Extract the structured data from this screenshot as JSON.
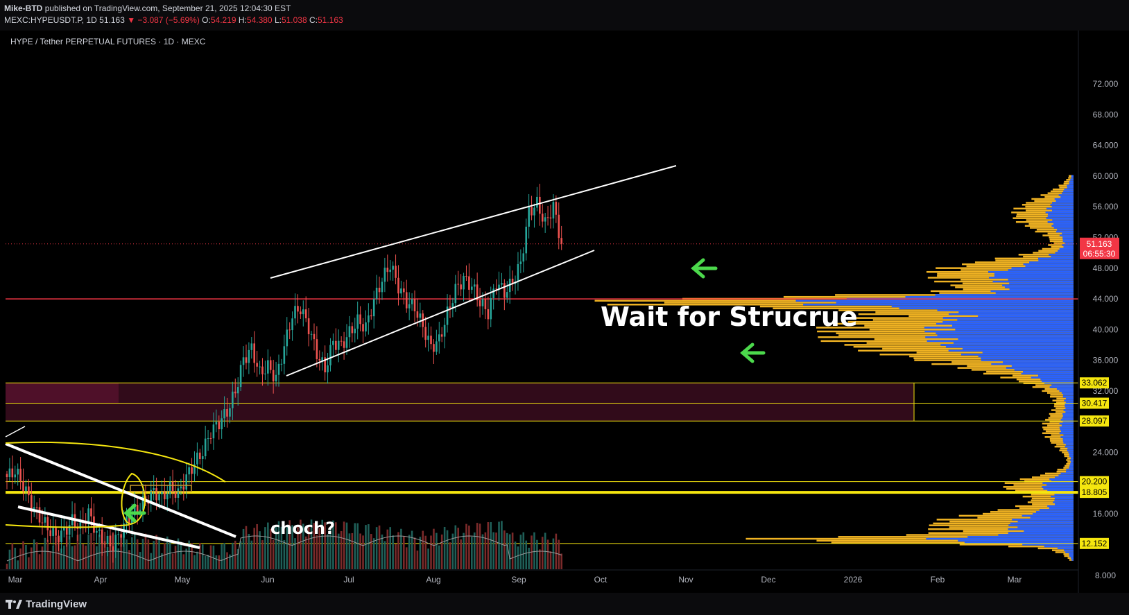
{
  "header": {
    "author": "Mike-BTD",
    "published_text": "published on TradingView.com, September 21, 2025 12:04:30 EST",
    "symbol": "MEXC:HYPEUSDT.P, 1D",
    "last": "51.163",
    "change": "▼ −3.087 (−5.69%)",
    "o_label": "O:",
    "o": "54.219",
    "h_label": "H:",
    "h": "54.380",
    "l_label": "L:",
    "l": "51.038",
    "c_label": "C:",
    "c": "51.163"
  },
  "chart": {
    "title": "HYPE / Tether PERPETUAL FUTURES · 1D · MEXC",
    "annotation_main": "Wait for Strucrue",
    "annotation_choch": "choch?",
    "price_ticks": [
      "72.000",
      "68.000",
      "64.000",
      "60.000",
      "56.000",
      "52.000",
      "48.000",
      "44.000",
      "40.000",
      "36.000",
      "32.000",
      "24.000",
      "16.000",
      "8.000"
    ],
    "price_tick_values": [
      72,
      68,
      64,
      60,
      56,
      52,
      48,
      44,
      40,
      36,
      32,
      24,
      16,
      8
    ],
    "current_price_label": "51.163",
    "countdown_label": "06:55:30",
    "level_labels": [
      "33.062",
      "30.417",
      "28.097",
      "20.200",
      "18.805",
      "12.152"
    ],
    "level_values": [
      33.062,
      30.417,
      28.097,
      20.2,
      18.805,
      12.152
    ],
    "time_labels": [
      "Mar",
      "Apr",
      "May",
      "Jun",
      "Jul",
      "Aug",
      "Sep",
      "Oct",
      "Nov",
      "Dec",
      "2026",
      "Feb",
      "Mar"
    ],
    "colors": {
      "up": "#26a69a",
      "down": "#ef5350",
      "level": "#f5e60f",
      "red_level": "#f23645",
      "arrow": "#4cd94c",
      "profile_blue": "#2962ff",
      "profile_gold": "#f0b323",
      "zone": "#3a0d1e"
    },
    "chart_data": {
      "type": "candlestick",
      "symbol": "MEXC:HYPEUSDT.P",
      "interval": "1D",
      "ylim": [
        5.5,
        76
      ],
      "last_close": 51.163,
      "closes_every_3_days": [
        20.8,
        21.6,
        19.8,
        17.2,
        15.6,
        14.2,
        13.0,
        13.6,
        15.1,
        14.3,
        16.1,
        13.6,
        12.4,
        11.9,
        13.8,
        15.5,
        16.7,
        17.8,
        18.9,
        18.2,
        19.3,
        18.6,
        20.8,
        22.6,
        24.1,
        26.7,
        27.9,
        29.3,
        31.9,
        36.1,
        37.5,
        34.3,
        35.2,
        33.6,
        37.8,
        41.9,
        42.8,
        40.3,
        36.9,
        34.8,
        38.4,
        37.9,
        39.6,
        41.1,
        40.3,
        43.8,
        46.5,
        48.5,
        45.6,
        43.6,
        42.9,
        40.4,
        37.7,
        38.6,
        42.1,
        45.2,
        46.6,
        45.7,
        43.6,
        42.2,
        46.2,
        44.8,
        46.2,
        48.6,
        55.3,
        56.4,
        53.8,
        56.1,
        51.163
      ]
    }
  }
}
